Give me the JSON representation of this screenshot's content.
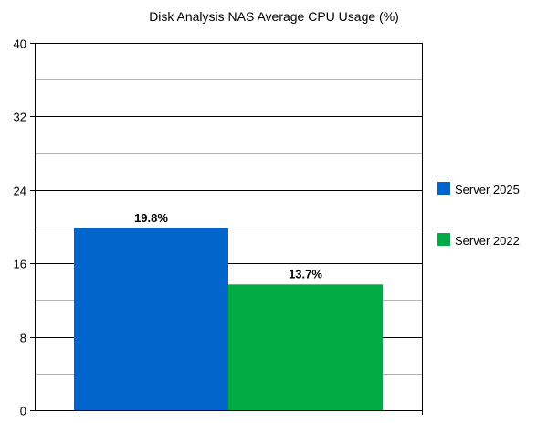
{
  "chart_data": {
    "type": "bar",
    "title": "Disk Analysis NAS Average CPU Usage (%)",
    "xlabel": "",
    "ylabel": "",
    "ylim": [
      0,
      40
    ],
    "yticks": [
      0,
      8,
      16,
      24,
      32,
      40
    ],
    "grid": true,
    "legend_position": "right",
    "series": [
      {
        "name": "Server 2025",
        "value": 19.8,
        "label": "19.8%",
        "color": "#0066cc"
      },
      {
        "name": "Server 2022",
        "value": 13.7,
        "label": "13.7%",
        "color": "#00aa44"
      }
    ]
  }
}
